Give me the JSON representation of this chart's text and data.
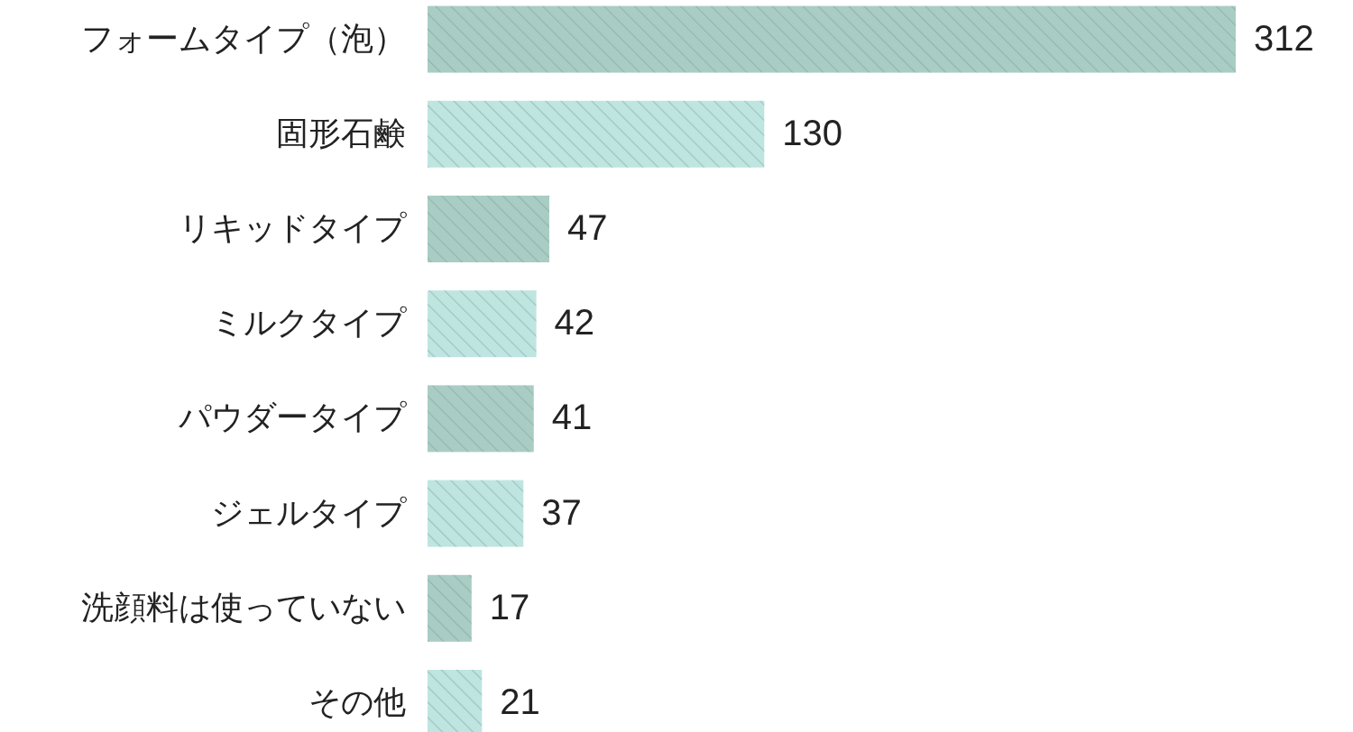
{
  "chart_data": {
    "type": "bar",
    "orientation": "horizontal",
    "data_labels": true,
    "categories": [
      "フォームタイプ（泡）",
      "固形石鹸",
      "リキッドタイプ",
      "ミルクタイプ",
      "パウダータイプ",
      "ジェルタイプ",
      "洗顔料は使っていない",
      "その他"
    ],
    "values": [
      312,
      130,
      47,
      42,
      41,
      37,
      17,
      21
    ],
    "colors": [
      "#a9cdc4",
      "#bfe5e1",
      "#a9cdc4",
      "#bfe5e1",
      "#a9cdc4",
      "#bfe5e1",
      "#a9cdc4",
      "#bfe5e1"
    ]
  }
}
